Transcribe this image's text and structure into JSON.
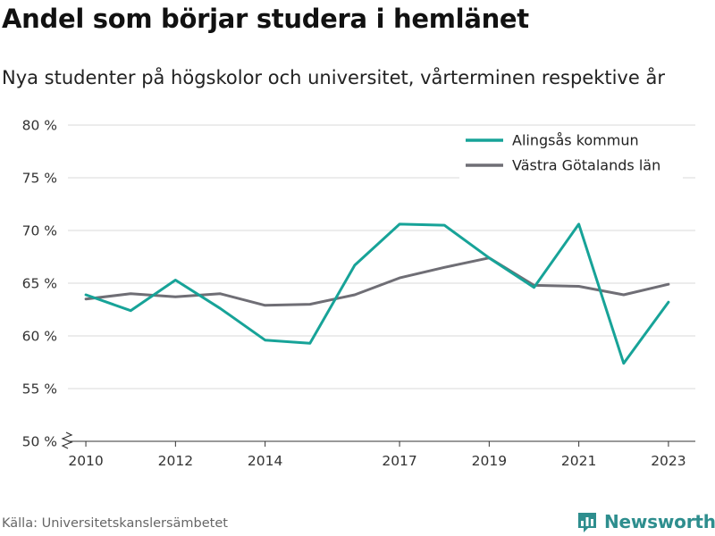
{
  "header": {
    "title": "Andel som börjar studera i hemlänet",
    "subtitle": "Nya studenter på högskolor och universitet, vårterminen respektive år"
  },
  "footer": {
    "source": "Källa: Universitetskanslersämbetet",
    "brand": "Newsworthy",
    "brand_color": "#2e8e8e"
  },
  "chart_data": {
    "type": "line",
    "title": "Andel som börjar studera i hemlänet",
    "subtitle": "Nya studenter på högskolor och universitet, vårterminen respektive år",
    "xlabel": "",
    "ylabel": "",
    "x": [
      2010,
      2011,
      2012,
      2013,
      2014,
      2015,
      2016,
      2017,
      2018,
      2019,
      2020,
      2021,
      2022,
      2023
    ],
    "x_ticks": [
      2010,
      2012,
      2014,
      2017,
      2019,
      2021,
      2023
    ],
    "xlim": [
      2009.6,
      2023.6
    ],
    "y_ticks": [
      50,
      55,
      60,
      65,
      70,
      75,
      80
    ],
    "y_tick_labels": [
      "50 %",
      "55 %",
      "60 %",
      "65 %",
      "70 %",
      "75 %",
      "80 %"
    ],
    "ylim": [
      50,
      80
    ],
    "y_axis_break": true,
    "grid": "horizontal",
    "legend_position": "top-right",
    "series": [
      {
        "name": "Alingsås kommun",
        "color": "#17a398",
        "values": [
          63.9,
          62.4,
          65.3,
          62.6,
          59.6,
          59.3,
          66.7,
          70.6,
          70.5,
          67.4,
          64.6,
          70.6,
          57.4,
          63.2
        ]
      },
      {
        "name": "Västra Götalands län",
        "color": "#6f6e75",
        "values": [
          63.5,
          64.0,
          63.7,
          64.0,
          62.9,
          63.0,
          63.9,
          65.5,
          66.5,
          67.4,
          64.8,
          64.7,
          63.9,
          64.9
        ]
      }
    ]
  }
}
